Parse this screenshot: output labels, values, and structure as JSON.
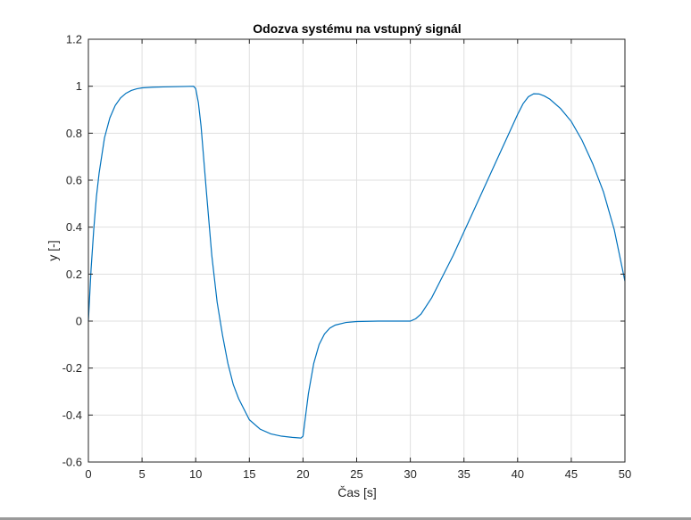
{
  "chart_data": {
    "type": "line",
    "title": "Odozva systému na vstupný signál",
    "xlabel": "Čas [s]",
    "ylabel": "y [-]",
    "xlim": [
      0,
      50
    ],
    "ylim": [
      -0.6,
      1.2
    ],
    "xticks": [
      0,
      5,
      10,
      15,
      20,
      25,
      30,
      35,
      40,
      45,
      50
    ],
    "xtick_labels": [
      "0",
      "5",
      "10",
      "15",
      "20",
      "25",
      "30",
      "35",
      "40",
      "45",
      "50"
    ],
    "yticks": [
      -0.6,
      -0.4,
      -0.2,
      0,
      0.2,
      0.4,
      0.6,
      0.8,
      1,
      1.2
    ],
    "ytick_labels": [
      "-0.6",
      "-0.4",
      "-0.2",
      "0",
      "0.2",
      "0.4",
      "0.6",
      "0.8",
      "1",
      "1.2"
    ],
    "grid": true,
    "legend": false,
    "series": [
      {
        "color": "#0072bd",
        "x": [
          0,
          0.25,
          0.5,
          0.75,
          1,
          1.5,
          2,
          2.5,
          3,
          3.5,
          4,
          4.5,
          5,
          6,
          7,
          8,
          9,
          9.8,
          10,
          10.25,
          10.5,
          11,
          11.5,
          12,
          12.5,
          13,
          13.5,
          14,
          15,
          16,
          17,
          18,
          19,
          19.8,
          20,
          20.25,
          20.5,
          21,
          21.5,
          22,
          22.5,
          23,
          24,
          25,
          26,
          27,
          28,
          29,
          30,
          30.5,
          31,
          32,
          33,
          34,
          35,
          36,
          37,
          38,
          39,
          40,
          40.5,
          41,
          41.5,
          42,
          42.5,
          43,
          44,
          45,
          46,
          47,
          48,
          49,
          50
        ],
        "y": [
          0,
          0.22,
          0.39,
          0.53,
          0.63,
          0.78,
          0.865,
          0.918,
          0.95,
          0.97,
          0.982,
          0.989,
          0.993,
          0.996,
          0.997,
          0.998,
          0.999,
          1.0,
          0.99,
          0.93,
          0.83,
          0.55,
          0.28,
          0.08,
          -0.06,
          -0.18,
          -0.27,
          -0.33,
          -0.42,
          -0.46,
          -0.48,
          -0.49,
          -0.495,
          -0.498,
          -0.49,
          -0.4,
          -0.31,
          -0.18,
          -0.1,
          -0.055,
          -0.03,
          -0.017,
          -0.006,
          -0.002,
          -0.001,
          0,
          0,
          0,
          0,
          0.01,
          0.03,
          0.1,
          0.19,
          0.28,
          0.38,
          0.48,
          0.58,
          0.68,
          0.78,
          0.88,
          0.925,
          0.955,
          0.968,
          0.967,
          0.958,
          0.945,
          0.905,
          0.85,
          0.77,
          0.67,
          0.55,
          0.39,
          0.17
        ]
      }
    ]
  }
}
